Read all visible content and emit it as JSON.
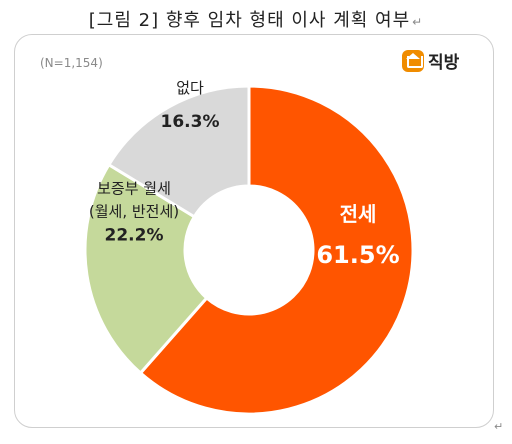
{
  "header": {
    "title": "[그림 2] 향후 임차 형태 이사 계획 여부",
    "return_mark": "↵"
  },
  "note": "(N=1,154)",
  "logo": {
    "text": "직방"
  },
  "colors": {
    "jeonse": "#FF5500",
    "wolse": "#C5D99B",
    "none": "#D9D9D9"
  },
  "chart_data": {
    "type": "pie",
    "donut": true,
    "slices": [
      {
        "label": "전세",
        "value": 61.5,
        "value_text": "61.5%",
        "color": "#FF5500"
      },
      {
        "label": "보증부 월세\n(월세, 반전세)",
        "value": 22.2,
        "value_text": "22.2%",
        "color": "#C5D99B"
      },
      {
        "label": "없다",
        "value": 16.3,
        "value_text": "16.3%",
        "color": "#D9D9D9"
      }
    ],
    "start_angle_deg": 0,
    "direction": "clockwise"
  },
  "footer": {
    "return_mark": "↵"
  }
}
